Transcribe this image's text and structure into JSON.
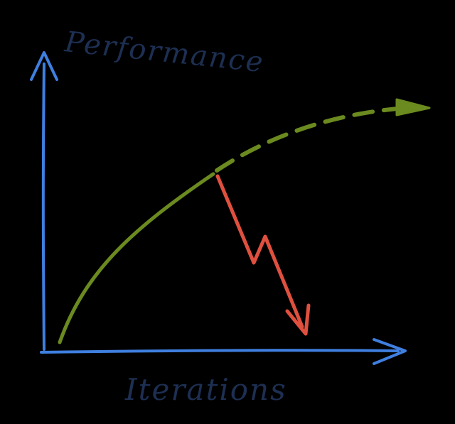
{
  "diagram": {
    "y_axis_label": "Performance",
    "x_axis_label": "Iterations",
    "colors": {
      "background": "#000000",
      "axes": "#3f7fe0",
      "labels": "#1d2f52",
      "growth_curve": "#6b8a1f",
      "crash_arrow": "#e0503f"
    },
    "icons": {
      "y_axis_arrowhead": "arrow-up-icon",
      "x_axis_arrowhead": "arrow-right-icon",
      "projection_arrowhead": "arrow-right-icon",
      "crash_arrowhead": "arrow-down-icon"
    }
  }
}
